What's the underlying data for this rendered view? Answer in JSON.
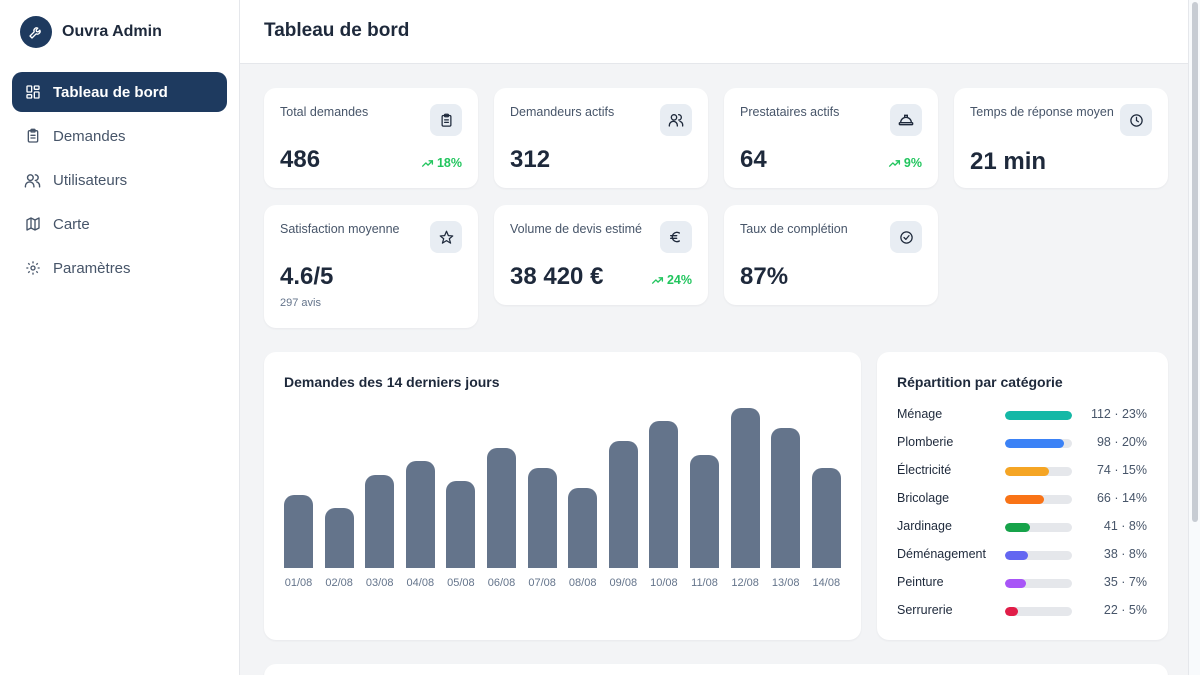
{
  "app": {
    "name": "Ouvra Admin",
    "logo_icon": "wrench-icon"
  },
  "sidebar": {
    "items": [
      {
        "label": "Tableau de bord",
        "icon": "dashboard-icon",
        "active": true
      },
      {
        "label": "Demandes",
        "icon": "clipboard-icon"
      },
      {
        "label": "Utilisateurs",
        "icon": "users-icon"
      },
      {
        "label": "Carte",
        "icon": "map-icon"
      },
      {
        "label": "Paramètres",
        "icon": "gear-icon"
      }
    ]
  },
  "header": {
    "title": "Tableau de bord"
  },
  "stats": [
    {
      "label": "Total demandes",
      "value": "486",
      "trend": "18%",
      "icon": "clipboard-icon"
    },
    {
      "label": "Demandeurs actifs",
      "value": "312",
      "icon": "users-icon"
    },
    {
      "label": "Prestataires actifs",
      "value": "64",
      "trend": "9%",
      "icon": "hardhat-icon"
    },
    {
      "label": "Temps de réponse moyen",
      "value": "21 min",
      "icon": "clock-icon"
    },
    {
      "label": "Satisfaction moyenne",
      "value": "4.6/5",
      "sub": "297 avis",
      "icon": "star-icon"
    },
    {
      "label": "Volume de devis estimé",
      "value": "38 420 €",
      "trend": "24%",
      "icon": "euro-icon"
    },
    {
      "label": "Taux de complétion",
      "value": "87%",
      "icon": "check-circle-icon"
    }
  ],
  "requests_chart": {
    "title": "Demandes des 14 derniers jours",
    "chart_data": {
      "type": "bar",
      "categories": [
        "01/08",
        "02/08",
        "03/08",
        "04/08",
        "05/08",
        "06/08",
        "07/08",
        "08/08",
        "09/08",
        "10/08",
        "11/08",
        "12/08",
        "13/08",
        "14/08"
      ],
      "values": [
        22,
        18,
        28,
        32,
        26,
        36,
        30,
        24,
        38,
        44,
        34,
        48,
        42,
        30
      ],
      "ylim": [
        0,
        48
      ],
      "color": "#64748b",
      "grid": false
    }
  },
  "category_panel": {
    "title": "Répartition par catégorie",
    "chart_data": {
      "type": "bar",
      "orientation": "horizontal",
      "categories": [
        "Ménage",
        "Plomberie",
        "Électricité",
        "Bricolage",
        "Jardinage",
        "Déménagement",
        "Peinture",
        "Serrurerie"
      ],
      "values": [
        112,
        98,
        74,
        66,
        41,
        38,
        35,
        22
      ],
      "percents": [
        23,
        20,
        15,
        14,
        8,
        8,
        7,
        5
      ],
      "labels": [
        "112 · 23%",
        "98 · 20%",
        "74 · 15%",
        "66 · 14%",
        "41 · 8%",
        "38 · 8%",
        "35 · 7%",
        "22 · 5%"
      ],
      "colors": [
        "#14b8a6",
        "#3b82f6",
        "#f5a524",
        "#f97316",
        "#16a34a",
        "#6366f1",
        "#a855f7",
        "#e11d48"
      ],
      "xlim": [
        0,
        112
      ]
    }
  },
  "colors": {
    "primary": "#1e3a5f",
    "trend_up": "#22c55e"
  }
}
